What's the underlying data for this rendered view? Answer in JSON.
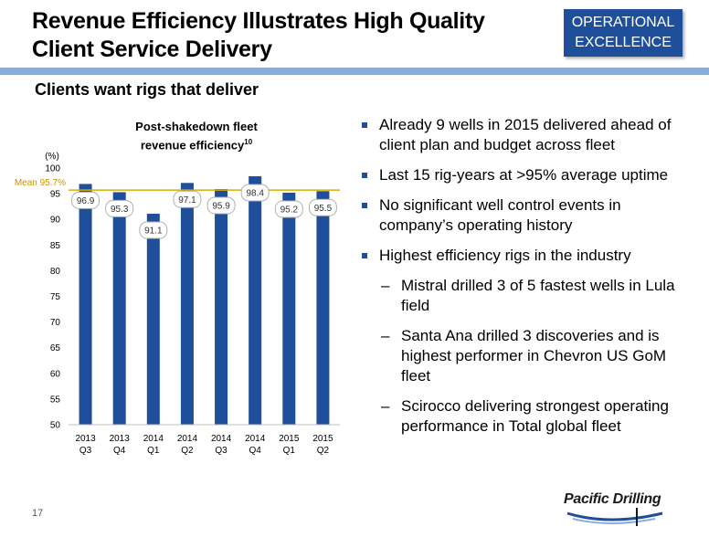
{
  "slide": {
    "title": "Revenue Efficiency Illustrates High Quality Client Service Delivery",
    "badge_line1": "OPERATIONAL",
    "badge_line2": "EXCELLENCE",
    "subtitle": "Clients want rigs that deliver",
    "page_number": "17",
    "logo_text": "Pacific Drilling"
  },
  "chart_data": {
    "type": "bar",
    "title_line1": "Post-shakedown fleet",
    "title_line2": "revenue efficiency",
    "title_footnote": "10",
    "ylabel": "(%)",
    "ylim": [
      50,
      100
    ],
    "yticks": [
      50,
      55,
      60,
      65,
      70,
      75,
      80,
      85,
      90,
      95,
      100
    ],
    "categories": [
      [
        "2013",
        "Q3"
      ],
      [
        "2013",
        "Q4"
      ],
      [
        "2014",
        "Q1"
      ],
      [
        "2014",
        "Q2"
      ],
      [
        "2014",
        "Q3"
      ],
      [
        "2014",
        "Q4"
      ],
      [
        "2015",
        "Q1"
      ],
      [
        "2015",
        "Q2"
      ]
    ],
    "values": [
      96.9,
      95.3,
      91.1,
      97.1,
      95.9,
      98.4,
      95.2,
      95.5
    ],
    "data_labels": [
      "96.9",
      "95.3",
      "91.1",
      "97.1",
      "95.9",
      "98.4",
      "95.2",
      "95.5"
    ],
    "mean_value": 95.7,
    "mean_label": "Mean 95.7%",
    "grid": false,
    "colors": {
      "bar": "#1f4e9a",
      "mean_line": "#d4b000",
      "mean_label": "#c89400"
    }
  },
  "bullets": [
    {
      "level": 1,
      "text": "Already 9 wells in 2015 delivered ahead of client plan and budget across fleet"
    },
    {
      "level": 1,
      "text": "Last 15 rig-years at >95% average uptime"
    },
    {
      "level": 1,
      "text": "No significant well control events in company’s operating history"
    },
    {
      "level": 1,
      "text": "Highest efficiency rigs in the industry"
    },
    {
      "level": 2,
      "text": "Mistral drilled 3 of 5 fastest wells in Lula field"
    },
    {
      "level": 2,
      "text": "Santa Ana drilled 3 discoveries and is highest performer in Chevron US GoM fleet"
    },
    {
      "level": 2,
      "text": "Scirocco delivering strongest operating performance in Total global fleet"
    }
  ],
  "dash_marker": "–",
  "colors": {
    "accent": "#1f4e9a",
    "rule": "#8aaedc"
  }
}
